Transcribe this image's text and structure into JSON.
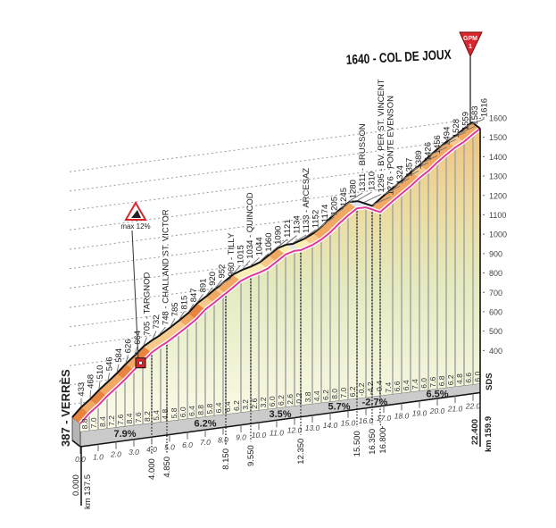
{
  "chart_data": {
    "type": "area",
    "title": "1640 - COL DE JOUX",
    "start": {
      "km": 0,
      "alt": 387,
      "label": "387 - VERRÈS"
    },
    "summit": {
      "km": 22.4,
      "alt": 1640,
      "label": "1640 - COL DE JOUX",
      "badge_top": "GPM",
      "badge_bottom": "1"
    },
    "profile": [
      {
        "km": 0.5,
        "alt": 433,
        "label": "433"
      },
      {
        "km": 1.0,
        "alt": 468,
        "label": "468"
      },
      {
        "km": 1.5,
        "alt": 510,
        "label": "510"
      },
      {
        "km": 2.0,
        "alt": 546,
        "label": "546"
      },
      {
        "km": 2.5,
        "alt": 584,
        "label": "584"
      },
      {
        "km": 3.0,
        "alt": 626,
        "label": "626"
      },
      {
        "km": 3.5,
        "alt": 664,
        "label": "664"
      },
      {
        "km": 4.0,
        "alt": 705,
        "label": "705 - TARGNOD"
      },
      {
        "km": 4.5,
        "alt": 732,
        "label": "732"
      },
      {
        "km": 4.85,
        "alt": 748,
        "label": "748 - CHALLAND ST. VICTOR"
      },
      {
        "km": 5.5,
        "alt": 785,
        "label": "785"
      },
      {
        "km": 6.0,
        "alt": 815,
        "label": "815"
      },
      {
        "km": 6.5,
        "alt": 847,
        "label": "847"
      },
      {
        "km": 7.0,
        "alt": 891,
        "label": "891"
      },
      {
        "km": 7.5,
        "alt": 920,
        "label": "920"
      },
      {
        "km": 8.0,
        "alt": 952,
        "label": "952"
      },
      {
        "km": 8.15,
        "alt": 960,
        "label": "960 - TILLY"
      },
      {
        "km": 9.0,
        "alt": 1015,
        "label": "1015"
      },
      {
        "km": 9.55,
        "alt": 1034,
        "label": "1034 - QUINCOD"
      },
      {
        "km": 10.0,
        "alt": 1044,
        "label": "1044"
      },
      {
        "km": 10.5,
        "alt": 1060,
        "label": "1060"
      },
      {
        "km": 11.0,
        "alt": 1090,
        "label": "1090"
      },
      {
        "km": 11.5,
        "alt": 1121,
        "label": "1121"
      },
      {
        "km": 12.0,
        "alt": 1134,
        "label": "1134"
      },
      {
        "km": 12.35,
        "alt": 1133,
        "label": "1133 - ARCESAZ"
      },
      {
        "km": 13.0,
        "alt": 1152,
        "label": "1152"
      },
      {
        "km": 13.5,
        "alt": 1174,
        "label": "1174"
      },
      {
        "km": 14.0,
        "alt": 1205,
        "label": "1205"
      },
      {
        "km": 14.5,
        "alt": 1245,
        "label": "1245"
      },
      {
        "km": 15.0,
        "alt": 1280,
        "label": "1280"
      },
      {
        "km": 15.5,
        "alt": 1311,
        "label": "1311 - BRUSSON"
      },
      {
        "km": 16.0,
        "alt": 1310,
        "label": "1310"
      },
      {
        "km": 16.35,
        "alt": 1295,
        "label": "1295 - BV. PER ST. VINCENT"
      },
      {
        "km": 16.8,
        "alt": 1276,
        "label": "1276 - PONTE EVENSON"
      },
      {
        "km": 17.5,
        "alt": 1324,
        "label": "1324"
      },
      {
        "km": 18.0,
        "alt": 1357,
        "label": "1357"
      },
      {
        "km": 18.5,
        "alt": 1389,
        "label": "1389"
      },
      {
        "km": 19.0,
        "alt": 1426,
        "label": "1426"
      },
      {
        "km": 19.5,
        "alt": 1456,
        "label": "1456"
      },
      {
        "km": 20.0,
        "alt": 1494,
        "label": "1494"
      },
      {
        "km": 20.5,
        "alt": 1528,
        "label": "1528"
      },
      {
        "km": 21.0,
        "alt": 1559,
        "label": "1559"
      },
      {
        "km": 21.5,
        "alt": 1583,
        "label": "1583"
      },
      {
        "km": 22.0,
        "alt": 1616,
        "label": "1616"
      }
    ],
    "half_km_gradients": [
      "8.8",
      "7.0",
      "8.4",
      "7.2",
      "7.6",
      "8.4",
      "7.6",
      "8.2",
      "5.4",
      "4.8",
      "5.8",
      "6.0",
      "6.4",
      "8.8",
      "5.8",
      "6.4",
      "6.4",
      "6.2",
      "3.2",
      "2.6",
      "3.2",
      "6.0",
      "6.2",
      "2.6",
      "0.2",
      "3.8",
      "4.4",
      "6.2",
      "8.0",
      "7.0",
      "6.2",
      "-0.2",
      "-4.2",
      "-0.4",
      "7.4",
      "6.6",
      "6.4",
      "7.4",
      "6.0",
      "7.6",
      "6.8",
      "6.2",
      "4.8",
      "6.6",
      "6.0"
    ],
    "average_gradients": [
      {
        "km": 2.5,
        "label": "7.9%"
      },
      {
        "km": 7.0,
        "label": "6.2%"
      },
      {
        "km": 11.2,
        "label": "3.5%"
      },
      {
        "km": 14.5,
        "label": "5.7%"
      },
      {
        "km": 16.5,
        "label": "-2.7%"
      },
      {
        "km": 20.0,
        "label": "6.5%"
      }
    ],
    "distance_markers": [
      {
        "km": 4.0,
        "label": "4.000"
      },
      {
        "km": 4.85,
        "label": "4.850"
      },
      {
        "km": 8.15,
        "label": "8.150"
      },
      {
        "km": 9.55,
        "label": "9.550"
      },
      {
        "km": 12.35,
        "label": "12.350"
      },
      {
        "km": 15.5,
        "label": "15.500"
      },
      {
        "km": 16.35,
        "label": "16.350"
      },
      {
        "km": 16.8,
        "label": "16.800"
      }
    ],
    "x_ticks": [
      "0.0",
      "1.0",
      "2.0",
      "3.0",
      "4.0",
      "5.0",
      "6.0",
      "7.0",
      "8.0",
      "9.0",
      "10.0",
      "11.0",
      "12.0",
      "13.0",
      "14.0",
      "15.0",
      "16.0",
      "17.0",
      "18.0",
      "19.0",
      "20.0",
      "21.0",
      "22.0"
    ],
    "y_ticks": [
      400,
      500,
      600,
      700,
      800,
      900,
      1000,
      1100,
      1200,
      1300,
      1400,
      1500,
      1600
    ],
    "ylim": [
      387,
      1640
    ],
    "xlim": [
      0,
      22.4
    ],
    "start_distance": "0.000",
    "start_km": "km 137.5",
    "end_distance": "22.400",
    "end_km": "km 159.9",
    "sds_label": "SDS",
    "max_gradient": {
      "km": 3.4,
      "label": "max 12%"
    },
    "grid": true,
    "colors": {
      "ridge": "#111111",
      "road": "#e0389a",
      "base": "#c9c9c9",
      "gpm": "#d8262c"
    }
  }
}
